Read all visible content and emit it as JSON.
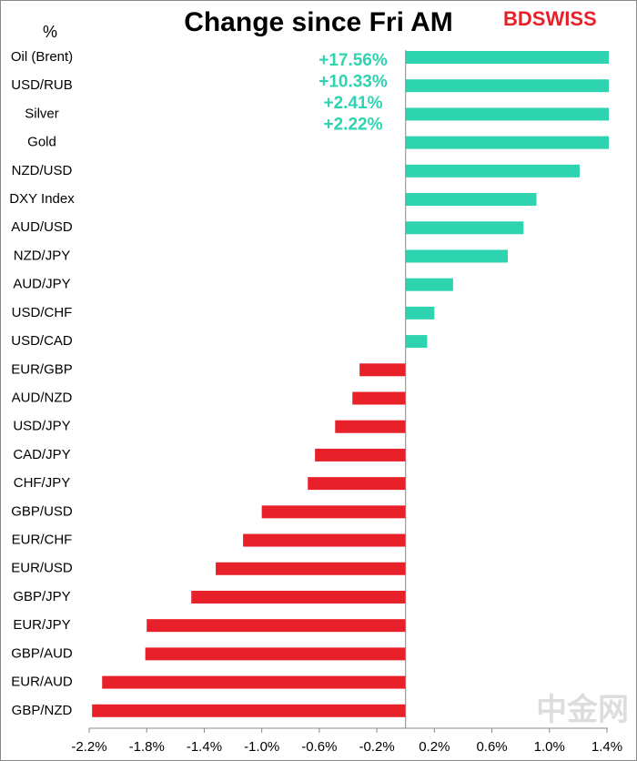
{
  "chart_data": {
    "type": "bar",
    "orientation": "horizontal",
    "title": "Change since Fri AM",
    "unit_label": "%",
    "logo": "BDSWISS",
    "watermark": "中金网",
    "categories": [
      "Oil (Brent)",
      "USD/RUB",
      "Silver",
      "Gold",
      "NZD/USD",
      "DXY Index",
      "AUD/USD",
      "NZD/JPY",
      "AUD/JPY",
      "USD/CHF",
      "USD/CAD",
      "EUR/GBP",
      "AUD/NZD",
      "USD/JPY",
      "CAD/JPY",
      "CHF/JPY",
      "GBP/USD",
      "EUR/CHF",
      "EUR/USD",
      "GBP/JPY",
      "EUR/JPY",
      "GBP/AUD",
      "EUR/AUD",
      "GBP/NZD"
    ],
    "values": [
      17.56,
      10.33,
      2.41,
      2.22,
      1.21,
      0.91,
      0.82,
      0.71,
      0.33,
      0.2,
      0.15,
      -0.32,
      -0.37,
      -0.49,
      -0.63,
      -0.68,
      -1.0,
      -1.13,
      -1.32,
      -1.49,
      -1.8,
      -1.81,
      -2.11,
      -2.18
    ],
    "value_labels": [
      "+17.56%",
      "+10.33%",
      "+2.41%",
      "+2.22%",
      null,
      null,
      null,
      null,
      null,
      null,
      null,
      null,
      null,
      null,
      null,
      null,
      null,
      null,
      null,
      null,
      null,
      null,
      null,
      null
    ],
    "positive_color": "#2ed3b0",
    "negative_color": "#e8202a",
    "xlim": [
      -2.2,
      1.4
    ],
    "xticks": [
      {
        "value": -2.2,
        "label": "-2.2%"
      },
      {
        "value": -1.8,
        "label": "-1.8%"
      },
      {
        "value": -1.4,
        "label": "-1.4%"
      },
      {
        "value": -1.0,
        "label": "-1.0%"
      },
      {
        "value": -0.6,
        "label": "-0.6%"
      },
      {
        "value": -0.2,
        "label": "-0.2%"
      },
      {
        "value": 0.2,
        "label": "0.2%"
      },
      {
        "value": 0.6,
        "label": "0.6%"
      },
      {
        "value": 1.0,
        "label": "1.0%"
      },
      {
        "value": 1.4,
        "label": "1.4%"
      }
    ]
  }
}
